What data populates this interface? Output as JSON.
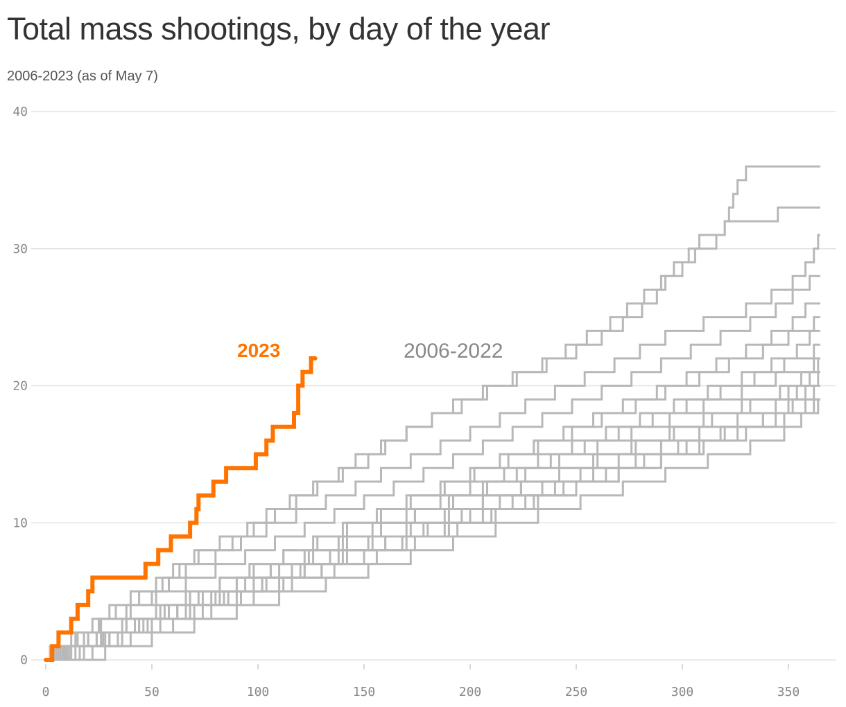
{
  "chart_data": {
    "type": "line",
    "title": "Total mass shootings, by day of the year",
    "subtitle": "2006-2023 (as of May 7)",
    "xlabel": "",
    "ylabel": "",
    "xlim": [
      0,
      370
    ],
    "ylim": [
      0,
      40
    ],
    "x_ticks": [
      "0",
      "50",
      "100",
      "150",
      "200",
      "250",
      "300",
      "350"
    ],
    "y_ticks": [
      "0",
      "10",
      "20",
      "30",
      "40"
    ],
    "grid": "horizontal",
    "colors": {
      "highlight": "#ff7400",
      "history": "#b8b8b8",
      "grid": "#e3e3e3"
    },
    "annotations": {
      "highlight_label": "2023",
      "history_label": "2006-2022"
    },
    "highlight_series": {
      "name": "2023",
      "end_day": 127,
      "event_days": [
        3,
        6,
        12,
        15,
        20,
        22,
        47,
        53,
        59,
        68,
        71,
        72,
        79,
        85,
        99,
        104,
        107,
        117,
        119,
        119,
        121,
        125
      ]
    },
    "history_series": {
      "name": "2006-2022",
      "end_day": 365,
      "event_days": [
        [
          10,
          18,
          26,
          33,
          44,
          55,
          63,
          72,
          88,
          98,
          108,
          118,
          128,
          140,
          152,
          160,
          170,
          182,
          192,
          206,
          220,
          234,
          245,
          255,
          266,
          274,
          282,
          290,
          296,
          303,
          308,
          320,
          322,
          324,
          326,
          330
        ],
        [
          5,
          15,
          22,
          30,
          40,
          52,
          60,
          70,
          82,
          95,
          104,
          115,
          126,
          138,
          146,
          158,
          170,
          182,
          196,
          208,
          222,
          236,
          250,
          262,
          272,
          281,
          288,
          292,
          300,
          306,
          316,
          320,
          345
        ],
        [
          7,
          14,
          25,
          38,
          50,
          58,
          66,
          80,
          92,
          104,
          118,
          132,
          146,
          158,
          172,
          186,
          200,
          214,
          226,
          240,
          254,
          268,
          280,
          292,
          310,
          330,
          342,
          352,
          358,
          362,
          364
        ],
        [
          3,
          12,
          26,
          40,
          52,
          66,
          80,
          94,
          108,
          122,
          136,
          150,
          164,
          178,
          192,
          206,
          220,
          234,
          248,
          262,
          276,
          290,
          304,
          318,
          332,
          344,
          352,
          360
        ],
        [
          9,
          24,
          38,
          54,
          68,
          82,
          96,
          112,
          126,
          140,
          156,
          170,
          186,
          200,
          214,
          230,
          244,
          258,
          272,
          288,
          302,
          316,
          330,
          342,
          352,
          358
        ],
        [
          6,
          20,
          36,
          52,
          66,
          82,
          98,
          112,
          128,
          142,
          158,
          172,
          188,
          202,
          218,
          232,
          248,
          262,
          278,
          292,
          308,
          322,
          338,
          350,
          362
        ],
        [
          11,
          27,
          42,
          58,
          74,
          90,
          106,
          122,
          138,
          154,
          170,
          186,
          200,
          216,
          232,
          248,
          264,
          280,
          296,
          312,
          328,
          342,
          354,
          360
        ],
        [
          14,
          30,
          46,
          62,
          78,
          94,
          110,
          126,
          142,
          158,
          174,
          190,
          206,
          222,
          238,
          254,
          270,
          286,
          302,
          318,
          334,
          348,
          362
        ],
        [
          4,
          20,
          38,
          56,
          72,
          90,
          106,
          124,
          140,
          158,
          174,
          192,
          208,
          226,
          242,
          260,
          276,
          294,
          310,
          328,
          344,
          362
        ],
        [
          16,
          34,
          50,
          68,
          86,
          102,
          120,
          138,
          154,
          172,
          190,
          206,
          224,
          242,
          258,
          276,
          294,
          310,
          328,
          346,
          356,
          364
        ],
        [
          8,
          26,
          44,
          62,
          80,
          98,
          116,
          134,
          152,
          170,
          188,
          206,
          224,
          242,
          260,
          278,
          296,
          314,
          332,
          350,
          364
        ],
        [
          12,
          28,
          48,
          66,
          84,
          104,
          122,
          140,
          160,
          178,
          196,
          214,
          234,
          252,
          270,
          290,
          308,
          326,
          344,
          354,
          360
        ],
        [
          18,
          36,
          54,
          74,
          92,
          112,
          130,
          150,
          168,
          188,
          206,
          226,
          244,
          264,
          282,
          302,
          320,
          338,
          350,
          362
        ],
        [
          22,
          40,
          60,
          78,
          98,
          116,
          136,
          156,
          174,
          194,
          212,
          232,
          250,
          270,
          290,
          308,
          326,
          344,
          352,
          358
        ],
        [
          2,
          24,
          44,
          62,
          82,
          102,
          122,
          142,
          160,
          180,
          200,
          220,
          240,
          258,
          278,
          298,
          318,
          338,
          358
        ],
        [
          10,
          30,
          50,
          70,
          90,
          110,
          130,
          150,
          170,
          190,
          210,
          230,
          250,
          270,
          290,
          310,
          330,
          348,
          364
        ],
        [
          28,
          50,
          70,
          90,
          110,
          132,
          152,
          172,
          192,
          212,
          232,
          252,
          272,
          292,
          312,
          332,
          348,
          356,
          362
        ]
      ]
    }
  }
}
